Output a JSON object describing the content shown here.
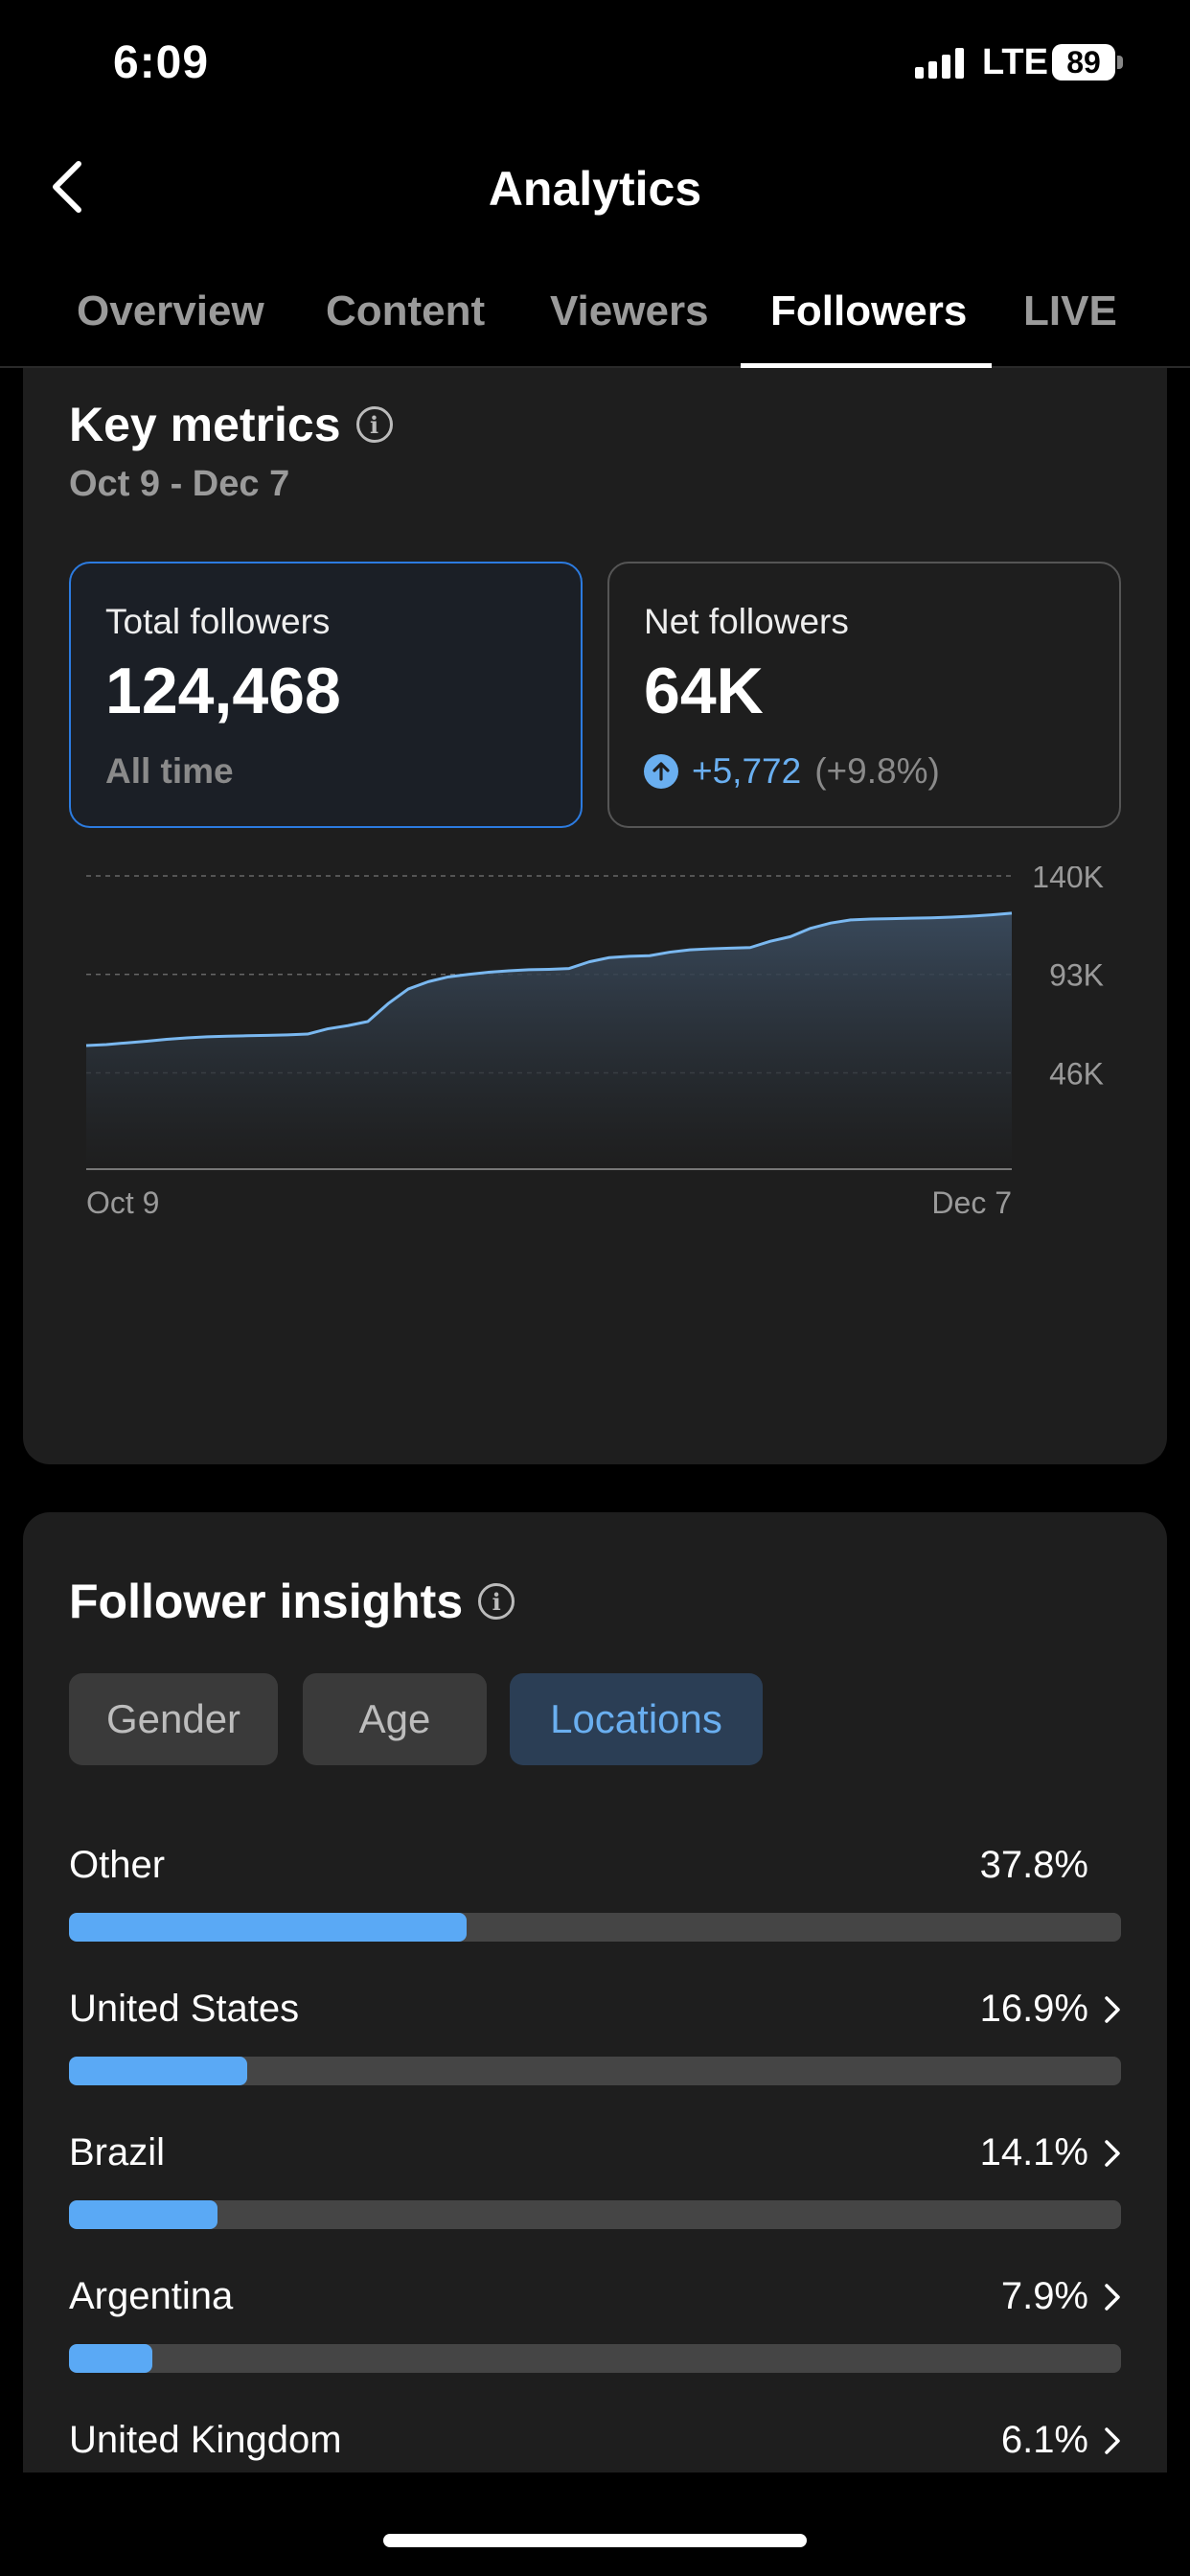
{
  "status_bar": {
    "time": "6:09",
    "network": "LTE",
    "battery": "89"
  },
  "header": {
    "title": "Analytics"
  },
  "tabs": [
    {
      "label": "Overview",
      "active": false
    },
    {
      "label": "Content",
      "active": false
    },
    {
      "label": "Viewers",
      "active": false
    },
    {
      "label": "Followers",
      "active": true
    },
    {
      "label": "LIVE",
      "active": false
    }
  ],
  "key_metrics": {
    "title": "Key metrics",
    "date_range": "Oct 9 - Dec 7",
    "total_followers": {
      "label": "Total followers",
      "value": "124,468",
      "sub": "All time"
    },
    "net_followers": {
      "label": "Net followers",
      "value": "64K",
      "change": "+5,772",
      "change_pct": "(+9.8%)"
    }
  },
  "chart_data": {
    "type": "area",
    "x_start_label": "Oct 9",
    "x_end_label": "Dec 7",
    "y_tick_labels": [
      "140K",
      "93K",
      "46K"
    ],
    "y_ticks": [
      140000,
      93000,
      46000
    ],
    "ylim": [
      0,
      140000
    ],
    "grid": true,
    "series": [
      {
        "values": [
          59000,
          59500,
          60300,
          61100,
          62000,
          62700,
          63200,
          63500,
          63700,
          63900,
          64100,
          64500,
          67000,
          68500,
          70500,
          79000,
          86000,
          89500,
          91800,
          93000,
          94000,
          94700,
          95200,
          95400,
          95800,
          99000,
          101000,
          101600,
          101900,
          103600,
          104700,
          105200,
          105500,
          105800,
          108800,
          111000,
          115000,
          117500,
          119000,
          119400,
          119600,
          119800,
          120000,
          120300,
          120800,
          121400,
          122200
        ]
      }
    ],
    "color": "#7ab8f0"
  },
  "insights": {
    "title": "Follower insights",
    "segments": [
      {
        "label": "Gender",
        "active": false
      },
      {
        "label": "Age",
        "active": false
      },
      {
        "label": "Locations",
        "active": true
      }
    ],
    "locations": [
      {
        "name": "Other",
        "pct_label": "37.8%",
        "pct": 37.8,
        "chevron": false
      },
      {
        "name": "United States",
        "pct_label": "16.9%",
        "pct": 16.9,
        "chevron": true
      },
      {
        "name": "Brazil",
        "pct_label": "14.1%",
        "pct": 14.1,
        "chevron": true
      },
      {
        "name": "Argentina",
        "pct_label": "7.9%",
        "pct": 7.9,
        "chevron": true
      },
      {
        "name": "United Kingdom",
        "pct_label": "6.1%",
        "pct": 6.1,
        "chevron": true
      }
    ]
  },
  "colors": {
    "accent": "#6aaff0",
    "bar_fill": "#5aa9f5",
    "selected_border": "#2c7be0"
  }
}
